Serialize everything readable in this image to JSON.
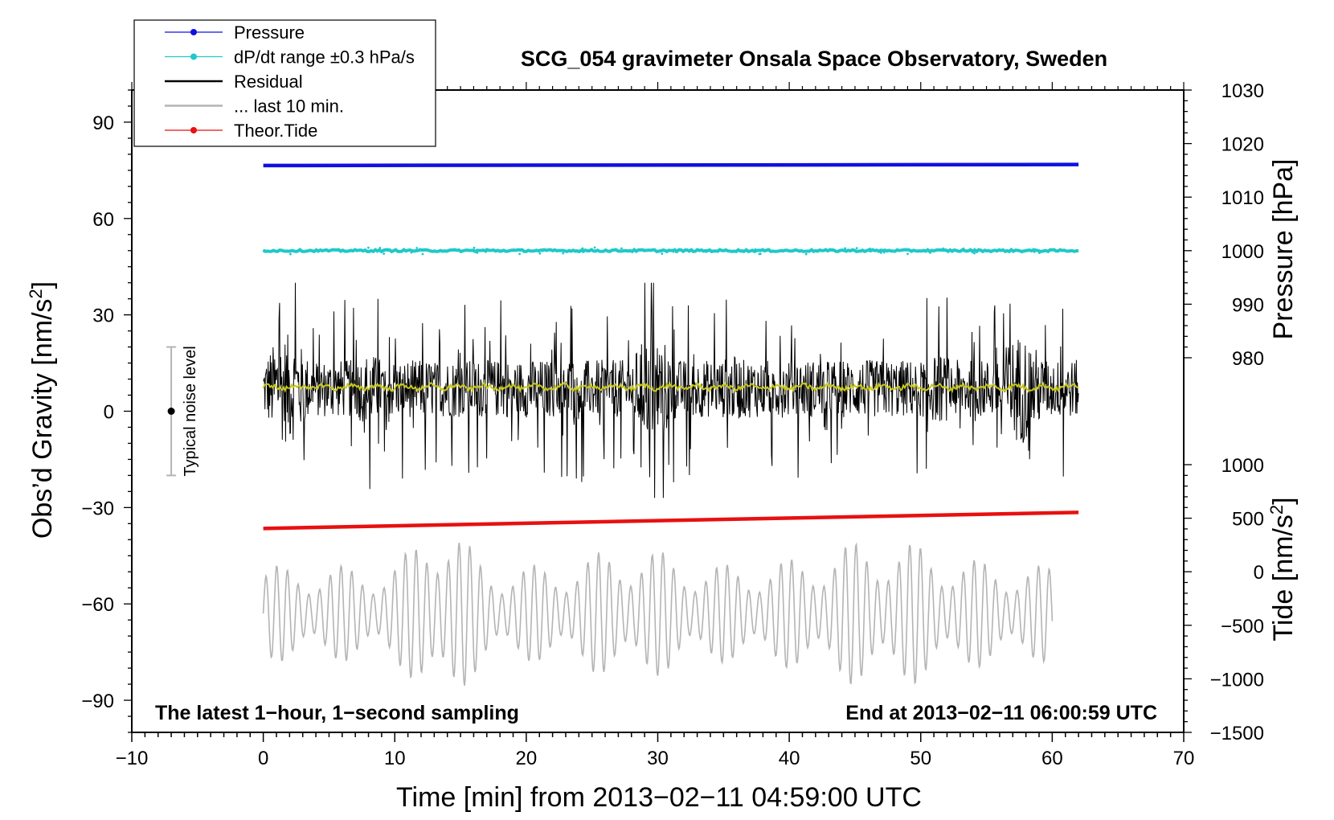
{
  "chart_data": {
    "type": "line",
    "title": "SCG_054 gravimeter Onsala Space Observatory, Sweden",
    "xlabel": "Time [min] from 2013−02−11 04:59:00 UTC",
    "ylabel_left": "Obs’d Gravity [nm/s²]",
    "ylabel_left_main": "Obs’d Gravity [nm/s",
    "ylabel_left_sup": "2",
    "ylabel_left_end": "]",
    "ylabel_right_upper": "Pressure [hPa]",
    "ylabel_right_lower": "Tide [nm/s²]",
    "ylabel_right_lower_main": "Tide [nm/s",
    "ylabel_right_lower_sup": "2",
    "ylabel_right_lower_end": "]",
    "xlim": [
      -10,
      70
    ],
    "ylim": [
      -100,
      100
    ],
    "pressure_lim": [
      970,
      1030
    ],
    "tide_lim": [
      -1500,
      1000
    ],
    "x_ticks": [
      -10,
      0,
      10,
      20,
      30,
      40,
      50,
      60,
      70
    ],
    "x_tick_labels": [
      "−10",
      "0",
      "10",
      "20",
      "30",
      "40",
      "50",
      "60",
      "70"
    ],
    "y_ticks": [
      -90,
      -60,
      -30,
      0,
      30,
      60,
      90
    ],
    "y_tick_labels": [
      "−90",
      "−60",
      "−30",
      "0",
      "30",
      "60",
      "90"
    ],
    "pressure_ticks": [
      980,
      990,
      1000,
      1010,
      1020,
      1030
    ],
    "pressure_tick_labels": [
      "980",
      "990",
      "1000",
      "1010",
      "1020",
      "1030"
    ],
    "tide_ticks": [
      -1500,
      -1000,
      -500,
      0,
      500,
      1000
    ],
    "tide_tick_labels": [
      "−1500",
      "−1000",
      "−500",
      "0",
      "500",
      "1000"
    ],
    "legend_position": "top-left",
    "legend": [
      {
        "label": "Pressure",
        "color": "#1010e0",
        "marker": true
      },
      {
        "label": "dP/dt range ±0.3 hPa/s",
        "color": "#20c8c8",
        "marker": true
      },
      {
        "label": "Residual",
        "color": "#000000",
        "marker": false
      },
      {
        "label": "... last 10 min.",
        "color": "#b4b4b4",
        "marker": false
      },
      {
        "label": "Theor.Tide",
        "color": "#e81010",
        "marker": true
      }
    ],
    "series": [
      {
        "name": "Pressure",
        "color": "#1010e0",
        "x": [
          0,
          62
        ],
        "y": [
          76.5,
          76.8
        ]
      },
      {
        "name": "dP/dt range ±0.3 hPa/s",
        "color": "#20c8c8",
        "x": [
          0,
          62
        ],
        "y": [
          50,
          50
        ]
      },
      {
        "name": "Residual",
        "color": "#000000",
        "x_range": [
          0,
          62
        ],
        "center": 7,
        "typical_range": [
          -15,
          30
        ],
        "extremes": [
          -27,
          40
        ]
      },
      {
        "name": "Residual smoothed",
        "color": "#c8c81e",
        "x_range": [
          0,
          62
        ],
        "y": 7.5
      },
      {
        "name": "... last 10 min.",
        "color": "#b4b4b4",
        "x_range": [
          0,
          60
        ],
        "center": -63,
        "amplitude_typical": 15,
        "extremes": [
          -92,
          -31
        ]
      },
      {
        "name": "Theor.Tide",
        "color": "#e81010",
        "x": [
          0,
          62
        ],
        "y": [
          -36.5,
          -31.5
        ]
      }
    ],
    "noise_bar": {
      "label": "Typical noise level",
      "x": -7,
      "center": 0,
      "range": [
        -20,
        20
      ]
    },
    "annotation_left": "The latest 1−hour, 1−second sampling",
    "annotation_right": "End at 2013−02−11 06:00:59 UTC"
  }
}
